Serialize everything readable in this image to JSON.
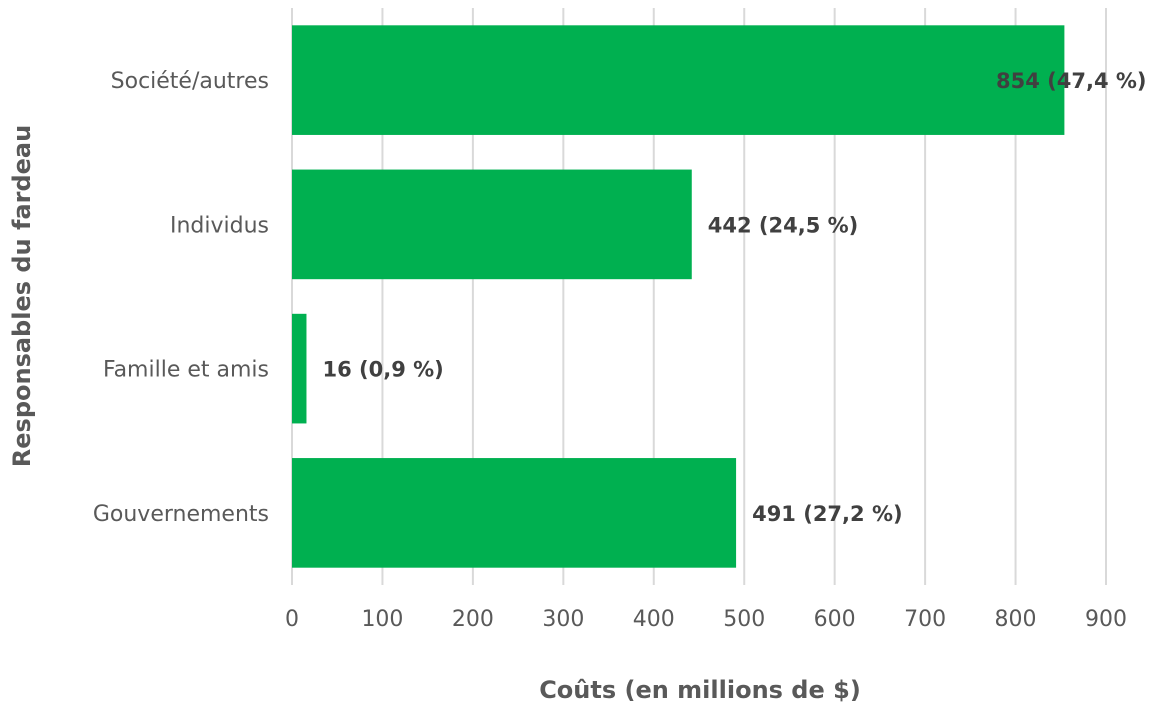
{
  "chart_data": {
    "type": "bar",
    "orientation": "horizontal",
    "categories": [
      "Société/autres",
      "Individus",
      "Famille et amis",
      "Gouvernements"
    ],
    "values": [
      854,
      442,
      16,
      491
    ],
    "data_labels": [
      "854 (47,4 %)",
      "442 (24,5 %)",
      "16 (0,9 %)",
      "491 (27,2 %)"
    ],
    "xlabel": "Coûts (en millions de $)",
    "ylabel": "Responsables du fardeau",
    "xlim": [
      0,
      900
    ],
    "xticks": [
      "0",
      "100",
      "200",
      "300",
      "400",
      "500",
      "600",
      "700",
      "800",
      "900"
    ],
    "grid": true,
    "colors": {
      "bar": "#00b050"
    }
  }
}
